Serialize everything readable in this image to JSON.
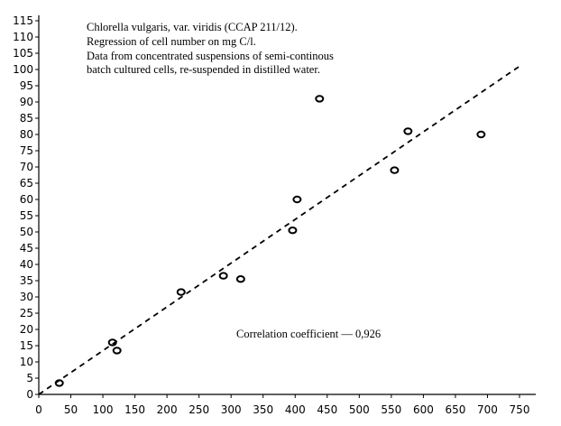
{
  "annotation_lines": [
    "Chlorella vulgaris, var. viridis (CCAP 211/12).",
    "Regression of cell number on mg C/l.",
    "Data from concentrated suspensions of semi-continous",
    "batch cultured cells, re-suspended in distilled water."
  ],
  "correlation_note": "Correlation coefficient — 0,926",
  "chart_data": {
    "type": "scatter",
    "title": "",
    "xlabel": "",
    "ylabel": "",
    "xlim": [
      0,
      750
    ],
    "ylim": [
      0,
      115
    ],
    "x_ticks": [
      0,
      50,
      100,
      150,
      200,
      250,
      300,
      350,
      400,
      450,
      500,
      550,
      600,
      650,
      700,
      750
    ],
    "y_ticks": [
      0,
      5,
      10,
      15,
      20,
      25,
      30,
      35,
      40,
      45,
      50,
      55,
      60,
      65,
      70,
      75,
      80,
      85,
      90,
      95,
      100,
      105,
      110,
      115
    ],
    "grid": false,
    "series": [
      {
        "x": [
          32,
          115,
          122,
          222,
          288,
          315,
          396,
          403,
          438,
          555,
          576,
          690
        ],
        "y": [
          3.5,
          16,
          13.5,
          31.5,
          36.5,
          35.5,
          50.5,
          60,
          91,
          69,
          81,
          80
        ]
      }
    ],
    "regression_line": {
      "x": [
        0,
        750
      ],
      "y": [
        0,
        101
      ]
    }
  }
}
